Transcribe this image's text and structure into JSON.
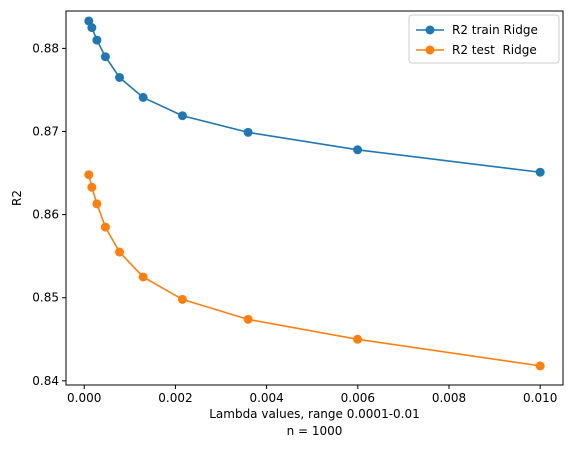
{
  "chart_data": {
    "type": "line",
    "title": "",
    "xlabel": "Lambda values, range 0.0001-0.01",
    "xlabel_line2": "n = 1000",
    "ylabel": "R2",
    "xlim": [
      -0.0004,
      0.0105
    ],
    "ylim": [
      0.8395,
      0.8845
    ],
    "xticks": [
      0.0,
      0.002,
      0.004,
      0.006,
      0.008,
      0.01
    ],
    "xtick_labels": [
      "0.000",
      "0.002",
      "0.004",
      "0.006",
      "0.008",
      "0.010"
    ],
    "yticks": [
      0.84,
      0.85,
      0.86,
      0.87,
      0.88
    ],
    "ytick_labels": [
      "0.84",
      "0.85",
      "0.86",
      "0.87",
      "0.88"
    ],
    "grid": false,
    "legend_position": "top-right",
    "x": [
      0.0001,
      0.000167,
      0.000278,
      0.000464,
      0.000774,
      0.001292,
      0.002154,
      0.003594,
      0.005995,
      0.01
    ],
    "series": [
      {
        "name": "R2 train Ridge",
        "color": "#1f77b4",
        "marker": "circle",
        "values": [
          0.8833,
          0.8825,
          0.881,
          0.879,
          0.8765,
          0.8741,
          0.8719,
          0.8699,
          0.8678,
          0.8651
        ]
      },
      {
        "name": "R2 test  Ridge",
        "color": "#ff7f0e",
        "marker": "circle",
        "values": [
          0.8648,
          0.8633,
          0.8613,
          0.8585,
          0.8555,
          0.8525,
          0.8498,
          0.8474,
          0.845,
          0.8418
        ]
      }
    ]
  }
}
